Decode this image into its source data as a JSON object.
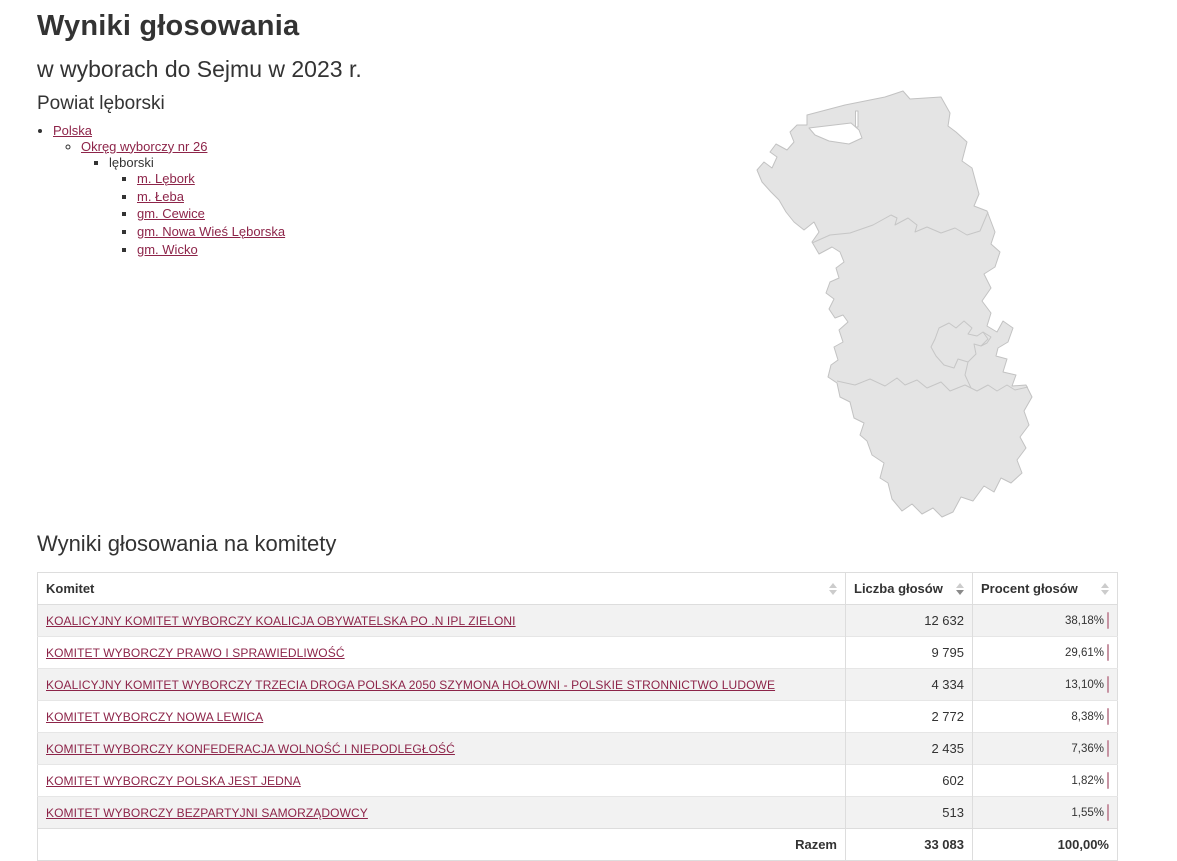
{
  "page": {
    "title": "Wyniki głosowania",
    "subtitle": "w wyborach do Sejmu w 2023 r.",
    "region_heading": "Powiat lęborski",
    "section_heading": "Wyniki głosowania na komitety"
  },
  "breadcrumb_tree": {
    "country": {
      "label": "Polska"
    },
    "district": {
      "label": "Okręg wyborczy nr 26"
    },
    "county": {
      "label": "lęborski"
    },
    "municipalities": [
      {
        "label": "m. Lębork"
      },
      {
        "label": "m. Łeba"
      },
      {
        "label": "gm. Cewice"
      },
      {
        "label": "gm. Nowa Wieś Lęborska"
      },
      {
        "label": "gm. Wicko"
      }
    ]
  },
  "map": {
    "name": "Powiat lęborski map"
  },
  "table": {
    "columns": [
      {
        "label": "Komitet",
        "sort": "none"
      },
      {
        "label": "Liczba głosów",
        "sort": "desc"
      },
      {
        "label": "Procent głosów",
        "sort": "none"
      }
    ],
    "rows": [
      {
        "committee": "KOALICYJNY KOMITET WYBORCZY KOALICJA OBYWATELSKA PO .N IPL ZIELONI",
        "votes": "12 632",
        "percent": "38,18%",
        "percent_value": 38.18
      },
      {
        "committee": "KOMITET WYBORCZY PRAWO I SPRAWIEDLIWOŚĆ",
        "votes": "9 795",
        "percent": "29,61%",
        "percent_value": 29.61
      },
      {
        "committee": "KOALICYJNY KOMITET WYBORCZY TRZECIA DROGA POLSKA 2050 SZYMONA HOŁOWNI - POLSKIE STRONNICTWO LUDOWE",
        "votes": "4 334",
        "percent": "13,10%",
        "percent_value": 13.1
      },
      {
        "committee": "KOMITET WYBORCZY NOWA LEWICA",
        "votes": "2 772",
        "percent": "8,38%",
        "percent_value": 8.38
      },
      {
        "committee": "KOMITET WYBORCZY KONFEDERACJA WOLNOŚĆ I NIEPODLEGŁOŚĆ",
        "votes": "2 435",
        "percent": "7,36%",
        "percent_value": 7.36
      },
      {
        "committee": "KOMITET WYBORCZY POLSKA JEST JEDNA",
        "votes": "602",
        "percent": "1,82%",
        "percent_value": 1.82
      },
      {
        "committee": "KOMITET WYBORCZY BEZPARTYJNI SAMORZĄDOWCY",
        "votes": "513",
        "percent": "1,55%",
        "percent_value": 1.55
      }
    ],
    "footer": {
      "label": "Razem",
      "votes": "33 083",
      "percent": "100,00%"
    }
  },
  "colors": {
    "accent": "#8d2449",
    "bar_fill": "#db9baa",
    "bar_border": "#c794a3",
    "row_alt": "#f2f2f2"
  }
}
